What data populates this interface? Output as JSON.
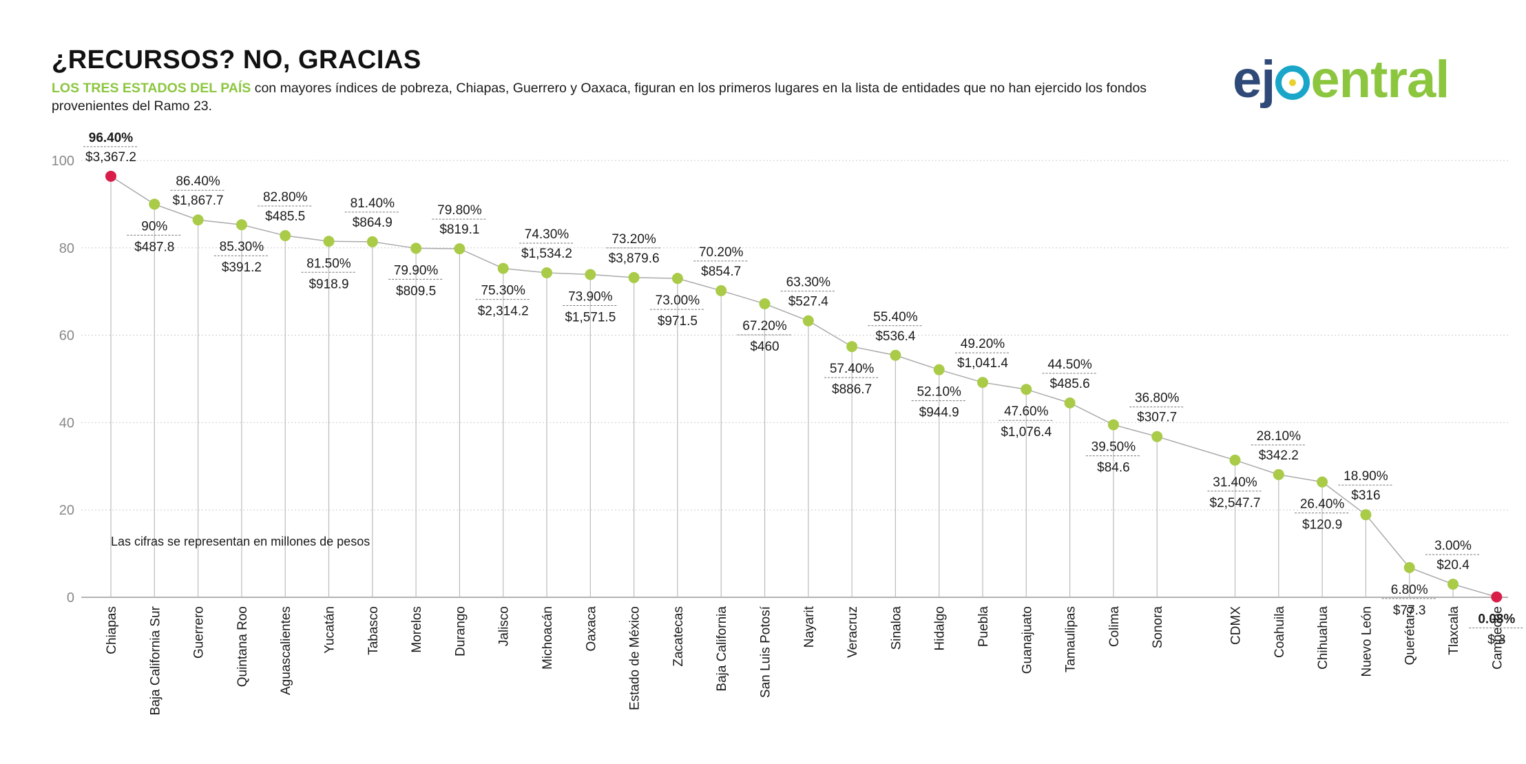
{
  "header": {
    "title": "¿RECURSOS? NO, GRACIAS",
    "subtitle_highlight": "LOS TRES ESTADOS DEL PAÍS",
    "subtitle_rest": " con mayores índices de pobreza, Chiapas, Guerrero y Oaxaca, figuran en los primeros lugares en la lista de entidades que no han ejercido los fondos provenientes del Ramo 23."
  },
  "logo": {
    "part1": "ej",
    "part2": "entral"
  },
  "chart_data": {
    "type": "line",
    "title": "¿RECURSOS? NO, GRACIAS",
    "xlabel": "",
    "ylabel": "",
    "ylim": [
      0,
      100
    ],
    "yticks": [
      0,
      20,
      40,
      60,
      80,
      100
    ],
    "grid": true,
    "note": "Las cifras se representan en millones de pesos",
    "colors": {
      "point": "#a9cb48",
      "highlight": "#d81e48",
      "line": "#aaaaaa",
      "grid": "#cccccc"
    },
    "categories": [
      "Chiapas",
      "Baja California Sur",
      "Guerrero",
      "Quintana Roo",
      "Aguascalientes",
      "Yucatán",
      "Tabasco",
      "Morelos",
      "Durango",
      "Jalisco",
      "Michoacán",
      "Oaxaca",
      "Estado de México",
      "Zacatecas",
      "Baja California",
      "San Luis Potosí",
      "Nayarit",
      "Veracruz",
      "Sinaloa",
      "Hidalgo",
      "Puebla",
      "Guanajuato",
      "Tamaulipas",
      "Colima",
      "Sonora",
      "CDMX",
      "Coahuila",
      "Chihuahua",
      "Nuevo León",
      "Querétaro",
      "Tlaxcala",
      "Campeche"
    ],
    "values": [
      96.4,
      90,
      86.4,
      85.3,
      82.8,
      81.5,
      81.4,
      79.9,
      79.8,
      75.3,
      74.3,
      73.9,
      73.2,
      73.0,
      70.2,
      67.2,
      63.3,
      57.4,
      55.4,
      52.1,
      49.2,
      47.6,
      44.5,
      39.5,
      36.8,
      31.4,
      28.1,
      26.4,
      18.9,
      6.8,
      3.0,
      0.08
    ],
    "pct_labels": [
      "96.40%",
      "90%",
      "86.40%",
      "85.30%",
      "82.80%",
      "81.50%",
      "81.40%",
      "79.90%",
      "79.80%",
      "75.30%",
      "74.30%",
      "73.90%",
      "73.20%",
      "73.00%",
      "70.20%",
      "67.20%",
      "63.30%",
      "57.40%",
      "55.40%",
      "52.10%",
      "49.20%",
      "47.60%",
      "44.50%",
      "39.50%",
      "36.80%",
      "31.40%",
      "28.10%",
      "26.40%",
      "18.90%",
      "6.80%",
      "3.00%",
      "0.08%"
    ],
    "amount_labels": [
      "$3,367.2",
      "$487.8",
      "$1,867.7",
      "$391.2",
      "$485.5",
      "$918.9",
      "$864.9",
      "$809.5",
      "$819.1",
      "$2,314.2",
      "$1,534.2",
      "$1,571.5",
      "$3,879.6",
      "$971.5",
      "$854.7",
      "$460",
      "$527.4",
      "$886.7",
      "$536.4",
      "$944.9",
      "$1,041.4",
      "$1,076.4",
      "$485.6",
      "$84.6",
      "$307.7",
      "$2,547.7",
      "$342.2",
      "$120.9",
      "$316",
      "$77.3",
      "$20.4",
      "$.3"
    ],
    "highlighted": [
      "Chiapas",
      "Campeche"
    ]
  }
}
